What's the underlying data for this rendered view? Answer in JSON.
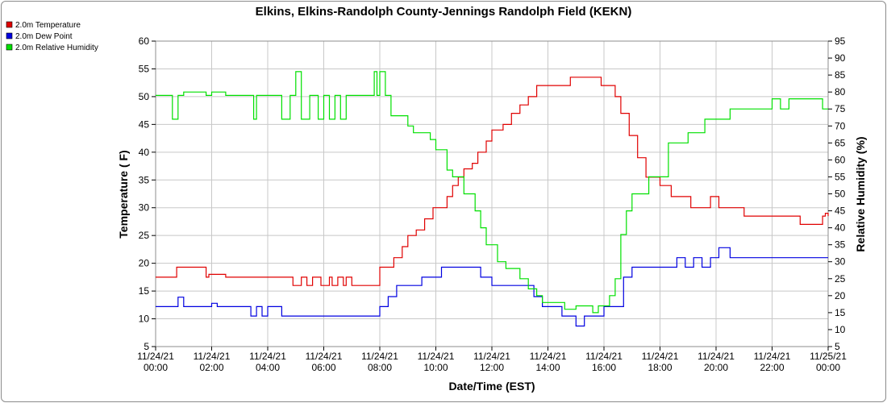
{
  "chart_data": {
    "type": "line",
    "title": "Elkins, Elkins-Randolph County-Jennings Randolph Field (KEKN)",
    "xlabel": "Date/Time (EST)",
    "ylabel": "Temperature ( F)",
    "y2label": "Relative Humidity (%)",
    "ylim": [
      5,
      60
    ],
    "y2lim": [
      5,
      95
    ],
    "yticks": [
      "5",
      "10",
      "15",
      "20",
      "25",
      "30",
      "35",
      "40",
      "45",
      "50",
      "55",
      "60"
    ],
    "y2ticks": [
      "5",
      "10",
      "15",
      "20",
      "25",
      "30",
      "35",
      "40",
      "45",
      "50",
      "55",
      "60",
      "65",
      "70",
      "75",
      "80",
      "85",
      "90",
      "95"
    ],
    "xlim": [
      0,
      24
    ],
    "xticks": [
      {
        "date": "11/24/21",
        "time": "00:00"
      },
      {
        "date": "11/24/21",
        "time": "02:00"
      },
      {
        "date": "11/24/21",
        "time": "04:00"
      },
      {
        "date": "11/24/21",
        "time": "06:00"
      },
      {
        "date": "11/24/21",
        "time": "08:00"
      },
      {
        "date": "11/24/21",
        "time": "10:00"
      },
      {
        "date": "11/24/21",
        "time": "12:00"
      },
      {
        "date": "11/24/21",
        "time": "14:00"
      },
      {
        "date": "11/24/21",
        "time": "16:00"
      },
      {
        "date": "11/24/21",
        "time": "18:00"
      },
      {
        "date": "11/24/21",
        "time": "20:00"
      },
      {
        "date": "11/24/21",
        "time": "22:00"
      },
      {
        "date": "11/25/21",
        "time": "00:00"
      }
    ],
    "grid": true,
    "legend_position": "top-left",
    "series": [
      {
        "name": "2.0m Temperature",
        "color": "#e00000",
        "axis": "left",
        "x": [
          0,
          0.5,
          0.75,
          1.8,
          1.9,
          2.5,
          3.0,
          3.5,
          4.8,
          4.9,
          5.2,
          5.4,
          5.6,
          5.9,
          6.0,
          6.2,
          6.3,
          6.5,
          6.7,
          6.8,
          7.0,
          7.7,
          8.0,
          8.3,
          8.5,
          8.8,
          9.0,
          9.3,
          9.6,
          9.9,
          10.2,
          10.4,
          10.6,
          10.8,
          11.0,
          11.3,
          11.5,
          11.8,
          12.0,
          12.4,
          12.7,
          13.0,
          13.3,
          13.6,
          13.9,
          14.3,
          14.6,
          14.8,
          15.0,
          15.3,
          15.6,
          15.9,
          16.1,
          16.4,
          16.6,
          16.9,
          17.2,
          17.5,
          17.7,
          17.9,
          18.0,
          18.4,
          18.8,
          19.1,
          19.4,
          19.8,
          20.1,
          20.4,
          20.7,
          21.0,
          21.5,
          21.8,
          22.0,
          22.2,
          22.5,
          22.8,
          23.0,
          23.2,
          23.5,
          23.8,
          23.9,
          24.0
        ],
        "values": [
          17.5,
          17.5,
          19.3,
          17.5,
          18.0,
          17.5,
          17.5,
          17.5,
          17.5,
          16.0,
          17.5,
          16.0,
          17.5,
          16.0,
          16.0,
          17.5,
          16.0,
          17.5,
          16.0,
          17.5,
          16.0,
          16.0,
          19.3,
          19.3,
          21.0,
          23.0,
          25.0,
          26.0,
          28.0,
          30.0,
          30.0,
          32.0,
          34.0,
          35.5,
          37.0,
          38.0,
          40.0,
          42.0,
          44.0,
          45.0,
          47.0,
          48.5,
          50.0,
          52.0,
          52.0,
          52.0,
          52.0,
          53.5,
          53.5,
          53.5,
          53.5,
          52.0,
          52.0,
          50.0,
          47.0,
          43.0,
          39.0,
          35.5,
          35.5,
          35.5,
          34.0,
          32.0,
          32.0,
          30.0,
          30.0,
          32.0,
          30.0,
          30.0,
          30.0,
          28.5,
          28.5,
          28.5,
          28.5,
          28.5,
          28.5,
          28.5,
          27.0,
          27.0,
          27.0,
          28.5,
          29.0,
          28.5
        ]
      },
      {
        "name": "2.0m Dew Point",
        "color": "#0000e0",
        "axis": "left",
        "x": [
          0,
          0.7,
          0.8,
          1.0,
          1.9,
          2.0,
          2.2,
          3.2,
          3.4,
          3.6,
          3.8,
          4.0,
          4.2,
          4.5,
          5.0,
          5.5,
          6.0,
          6.5,
          7.0,
          7.5,
          7.8,
          8.0,
          8.3,
          8.6,
          9.0,
          9.5,
          9.8,
          10.2,
          10.5,
          10.8,
          11.0,
          11.3,
          11.6,
          11.8,
          12.0,
          12.3,
          12.6,
          13.0,
          13.3,
          13.5,
          13.8,
          14.1,
          14.5,
          14.8,
          15.0,
          15.3,
          15.6,
          15.8,
          16.0,
          16.2,
          16.4,
          16.7,
          17.0,
          17.5,
          17.8,
          18.0,
          18.3,
          18.6,
          18.9,
          19.2,
          19.5,
          19.8,
          20.1,
          20.5,
          20.8,
          21.2,
          21.5,
          21.8,
          22.0,
          22.3,
          22.7,
          23.0,
          23.4,
          23.8,
          24.0
        ],
        "values": [
          12.2,
          12.2,
          13.9,
          12.2,
          12.2,
          12.8,
          12.2,
          12.2,
          10.5,
          12.2,
          10.5,
          12.2,
          12.2,
          10.5,
          10.5,
          10.5,
          10.5,
          10.5,
          10.5,
          10.5,
          10.5,
          12.2,
          14.0,
          16.0,
          16.0,
          17.5,
          17.5,
          19.3,
          19.3,
          19.3,
          19.3,
          19.3,
          17.5,
          17.5,
          16.0,
          16.0,
          16.0,
          16.0,
          16.0,
          14.0,
          12.2,
          12.2,
          10.5,
          10.5,
          8.7,
          10.5,
          10.5,
          10.5,
          12.2,
          12.2,
          12.2,
          17.5,
          19.3,
          19.3,
          19.3,
          19.3,
          19.3,
          21.0,
          19.3,
          21.0,
          19.3,
          21.0,
          22.8,
          21.0,
          21.0,
          21.0,
          21.0,
          21.0,
          21.0,
          21.0,
          21.0,
          21.0,
          21.0,
          21.0,
          21.0
        ]
      },
      {
        "name": "2.0m Relative Humidity",
        "color": "#00e000",
        "axis": "right",
        "x": [
          0,
          0.5,
          0.6,
          0.7,
          0.8,
          1.0,
          1.8,
          2.0,
          2.5,
          3.0,
          3.3,
          3.5,
          3.6,
          3.8,
          4.0,
          4.5,
          4.8,
          5.0,
          5.2,
          5.5,
          5.8,
          6.0,
          6.2,
          6.4,
          6.6,
          6.8,
          7.0,
          7.2,
          7.5,
          7.8,
          7.9,
          8.0,
          8.2,
          8.4,
          8.6,
          8.8,
          9.0,
          9.2,
          9.4,
          9.6,
          9.8,
          10.0,
          10.2,
          10.4,
          10.6,
          10.8,
          11.0,
          11.2,
          11.4,
          11.6,
          11.8,
          12.0,
          12.2,
          12.5,
          12.8,
          13.0,
          13.3,
          13.6,
          13.8,
          14.0,
          14.3,
          14.6,
          14.8,
          15.0,
          15.3,
          15.6,
          15.8,
          16.0,
          16.2,
          16.4,
          16.6,
          16.8,
          17.0,
          17.2,
          17.4,
          17.6,
          17.8,
          18.0,
          18.3,
          18.5,
          18.8,
          19.0,
          19.3,
          19.6,
          19.9,
          20.2,
          20.5,
          20.8,
          21.1,
          21.4,
          21.7,
          22.0,
          22.3,
          22.6,
          22.9,
          23.2,
          23.5,
          23.8,
          24.0
        ],
        "values": [
          79,
          79,
          72,
          72,
          79,
          80,
          79,
          80,
          79,
          79,
          79,
          72,
          79,
          79,
          79,
          72,
          79,
          86,
          72,
          79,
          72,
          79,
          72,
          79,
          72,
          79,
          79,
          79,
          79,
          86,
          79,
          86,
          79,
          73,
          73,
          73,
          70,
          68,
          68,
          68,
          66,
          63,
          63,
          57,
          55,
          55,
          50,
          50,
          45,
          40,
          35,
          35,
          30,
          28,
          28,
          25,
          22,
          20,
          18,
          18,
          18,
          16,
          16,
          17,
          17,
          15,
          17,
          17,
          20,
          25,
          38,
          45,
          50,
          50,
          50,
          55,
          55,
          55,
          65,
          65,
          65,
          68,
          68,
          72,
          72,
          72,
          75,
          75,
          75,
          75,
          75,
          78,
          75,
          78,
          78,
          78,
          78,
          75,
          75
        ]
      }
    ]
  }
}
